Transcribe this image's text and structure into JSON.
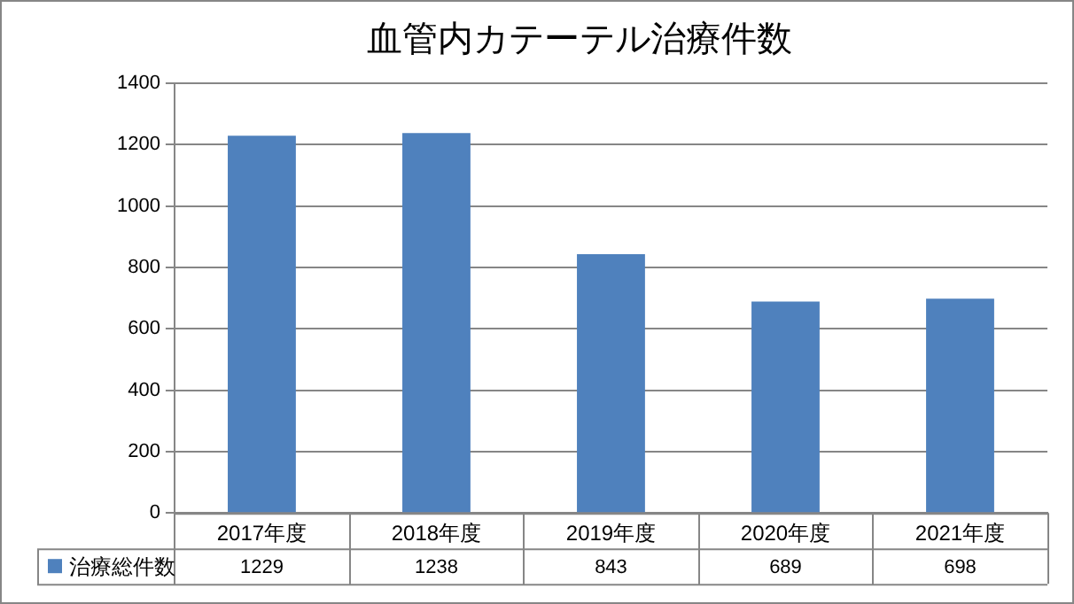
{
  "chart_data": {
    "type": "bar",
    "title": "血管内カテーテル治療件数",
    "categories": [
      "2017年度",
      "2018年度",
      "2019年度",
      "2020年度",
      "2021年度"
    ],
    "series": [
      {
        "name": "治療総件数",
        "color": "#4f81bd",
        "values": [
          1229,
          1238,
          843,
          689,
          698
        ]
      }
    ],
    "ylim": [
      0,
      1400
    ],
    "yticks": [
      0,
      200,
      400,
      600,
      800,
      1000,
      1200,
      1400
    ],
    "grid": "y",
    "legend": "bottom",
    "data_labels": true
  }
}
